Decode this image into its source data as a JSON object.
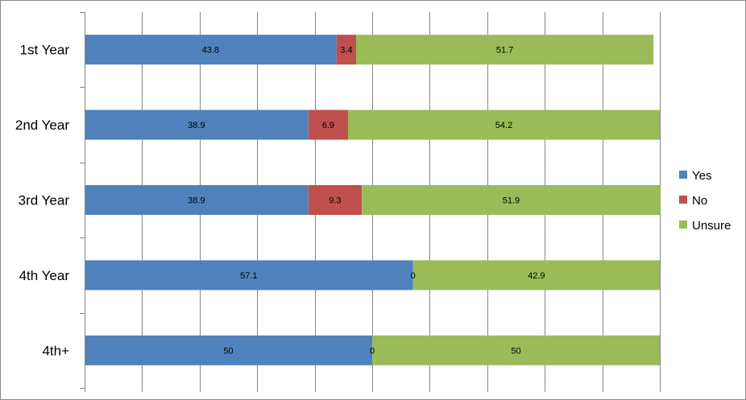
{
  "chart_data": {
    "type": "bar",
    "orientation": "horizontal",
    "stacked": true,
    "categories": [
      "1st Year",
      "2nd Year",
      "3rd Year",
      "4th Year",
      "4th+"
    ],
    "series": [
      {
        "name": "Yes",
        "color": "#4f81bd",
        "values": [
          43.8,
          38.9,
          38.9,
          57.1,
          50
        ]
      },
      {
        "name": "No",
        "color": "#c0504d",
        "values": [
          3.4,
          6.9,
          9.3,
          0,
          0
        ]
      },
      {
        "name": "Unsure",
        "color": "#9bbb59",
        "values": [
          51.7,
          54.2,
          51.9,
          42.9,
          50
        ]
      }
    ],
    "xlim": [
      0,
      100
    ],
    "grid": true,
    "legend": "right"
  }
}
